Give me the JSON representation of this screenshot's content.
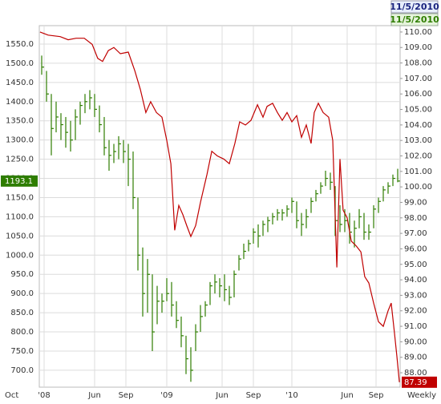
{
  "chart_data": {
    "type": "ohlc_line",
    "as_of": "11/5/2010",
    "x_start_label": "Oct",
    "period": "Weekly",
    "xlim": [
      -2,
      148
    ],
    "xticks": [
      {
        "value": 0,
        "label": "'08"
      },
      {
        "value": 21,
        "label": "Jun"
      },
      {
        "value": 34,
        "label": "Sep"
      },
      {
        "value": 51,
        "label": "'09"
      },
      {
        "value": 74,
        "label": "Jun"
      },
      {
        "value": 87,
        "label": "Sep"
      },
      {
        "value": 103,
        "label": "'10"
      },
      {
        "value": 126,
        "label": "Jun"
      },
      {
        "value": 138,
        "label": "Sep"
      }
    ],
    "ylim": [
      656,
      1598
    ],
    "yticks": [
      {
        "value": 700,
        "label": "700.0"
      },
      {
        "value": 750,
        "label": "750.0"
      },
      {
        "value": 800,
        "label": "800.0"
      },
      {
        "value": 850,
        "label": "850.0"
      },
      {
        "value": 900,
        "label": "900.0"
      },
      {
        "value": 950,
        "label": "950.0"
      },
      {
        "value": 1000,
        "label": "1000.0"
      },
      {
        "value": 1050,
        "label": "1050.0"
      },
      {
        "value": 1100,
        "label": "1100.0"
      },
      {
        "value": 1150,
        "label": "1150.0"
      },
      {
        "value": 1200,
        "label": "1200.0"
      },
      {
        "value": 1250,
        "label": "1250.0"
      },
      {
        "value": 1300,
        "label": "1300.0"
      },
      {
        "value": 1350,
        "label": "1350.0"
      },
      {
        "value": 1400,
        "label": "1400.0"
      },
      {
        "value": 1450,
        "label": "1450.0"
      },
      {
        "value": 1500,
        "label": "1500.0"
      },
      {
        "value": 1550,
        "label": "1550.0"
      }
    ],
    "y2lim": [
      87.07,
      110.41
    ],
    "y2ticks": [
      {
        "value": 88,
        "label": "88.00"
      },
      {
        "value": 89,
        "label": "89.00"
      },
      {
        "value": 90,
        "label": "90.00"
      },
      {
        "value": 91,
        "label": "91.00"
      },
      {
        "value": 92,
        "label": "92.00"
      },
      {
        "value": 93,
        "label": "93.00"
      },
      {
        "value": 94,
        "label": "94.00"
      },
      {
        "value": 95,
        "label": "95.00"
      },
      {
        "value": 96,
        "label": "96.00"
      },
      {
        "value": 97,
        "label": "97.00"
      },
      {
        "value": 98,
        "label": "98.00"
      },
      {
        "value": 99,
        "label": "99.00"
      },
      {
        "value": 100,
        "label": "100.00"
      },
      {
        "value": 101,
        "label": "101.00"
      },
      {
        "value": 102,
        "label": "102.00"
      },
      {
        "value": 103,
        "label": "103.00"
      },
      {
        "value": 104,
        "label": "104.00"
      },
      {
        "value": 105,
        "label": "105.00"
      },
      {
        "value": 106,
        "label": "106.00"
      },
      {
        "value": 107,
        "label": "107.00"
      },
      {
        "value": 108,
        "label": "108.00"
      },
      {
        "value": 109,
        "label": "109.00"
      },
      {
        "value": 110,
        "label": "110.00"
      }
    ],
    "grid": true,
    "series": [
      {
        "name": "11/5/2010",
        "color": "#2e7d00",
        "x": [
          -1,
          1,
          3,
          5,
          7,
          9,
          11,
          13,
          15,
          17,
          19,
          21,
          23,
          25,
          27,
          29,
          31,
          33,
          35,
          37,
          39,
          41,
          43,
          45,
          47,
          49,
          51,
          53,
          55,
          57,
          59,
          61,
          63,
          65,
          67,
          69,
          71,
          73,
          75,
          77,
          79,
          81,
          83,
          85,
          87,
          89,
          91,
          93,
          95,
          97,
          99,
          101,
          103,
          105,
          107,
          109,
          111,
          113,
          115,
          117,
          119,
          121,
          123,
          125,
          127,
          129,
          131,
          133,
          135,
          137,
          139,
          141,
          143,
          145,
          147
        ],
        "high": [
          1520,
          1480,
          1420,
          1400,
          1370,
          1360,
          1350,
          1380,
          1400,
          1420,
          1430,
          1420,
          1390,
          1360,
          1300,
          1290,
          1310,
          1300,
          1290,
          1270,
          1150,
          1020,
          990,
          950,
          920,
          900,
          940,
          930,
          880,
          840,
          790,
          760,
          820,
          870,
          880,
          930,
          950,
          940,
          950,
          920,
          960,
          1000,
          1030,
          1040,
          1070,
          1080,
          1090,
          1100,
          1110,
          1120,
          1120,
          1130,
          1150,
          1140,
          1110,
          1120,
          1150,
          1170,
          1190,
          1220,
          1215,
          1180,
          1130,
          1120,
          1110,
          1090,
          1120,
          1110,
          1080,
          1130,
          1150,
          1180,
          1190,
          1210,
          1225
        ],
        "low": [
          1470,
          1400,
          1260,
          1320,
          1300,
          1280,
          1270,
          1300,
          1340,
          1370,
          1380,
          1360,
          1320,
          1260,
          1220,
          1240,
          1250,
          1240,
          1180,
          1120,
          960,
          840,
          850,
          750,
          820,
          850,
          880,
          840,
          810,
          760,
          690,
          670,
          750,
          800,
          840,
          870,
          900,
          890,
          880,
          870,
          890,
          960,
          990,
          1010,
          1030,
          1020,
          1050,
          1060,
          1080,
          1090,
          1090,
          1100,
          1110,
          1070,
          1050,
          1070,
          1110,
          1140,
          1160,
          1180,
          1170,
          1050,
          1060,
          1060,
          1030,
          1020,
          1070,
          1040,
          1040,
          1070,
          1110,
          1140,
          1160,
          1180,
          1190
        ],
        "close": [
          1490,
          1420,
          1330,
          1360,
          1340,
          1320,
          1300,
          1360,
          1390,
          1400,
          1410,
          1380,
          1340,
          1280,
          1260,
          1270,
          1290,
          1270,
          1250,
          1150,
          1000,
          900,
          950,
          800,
          880,
          880,
          900,
          870,
          830,
          790,
          730,
          700,
          800,
          840,
          870,
          920,
          930,
          920,
          910,
          890,
          950,
          990,
          1010,
          1030,
          1060,
          1050,
          1080,
          1090,
          1100,
          1110,
          1110,
          1120,
          1140,
          1090,
          1080,
          1100,
          1140,
          1160,
          1180,
          1200,
          1190,
          1090,
          1080,
          1090,
          1060,
          1070,
          1100,
          1060,
          1060,
          1120,
          1140,
          1170,
          1180,
          1200,
          1193.1
        ]
      },
      {
        "color": "#c00000",
        "axis": "y2",
        "x": [
          -1.7,
          1.7,
          6.7,
          10,
          13.3,
          16.7,
          20,
          22.3,
          24.3,
          26.7,
          29,
          31.7,
          35,
          37.7,
          40,
          42.3,
          44.3,
          46.7,
          49,
          51,
          52.7,
          54.3,
          56,
          57.7,
          59.3,
          61,
          63,
          65,
          67.7,
          69.7,
          72,
          74.7,
          77,
          79.3,
          81.3,
          83.7,
          86,
          88.7,
          91,
          92.7,
          95,
          97,
          99,
          101,
          103,
          105,
          107,
          109,
          111,
          112.3,
          114,
          116,
          118.3,
          120,
          121.7,
          123,
          124.3,
          126,
          127.7,
          129.7,
          131.7,
          133.3,
          135,
          137,
          139,
          141,
          143,
          144.3,
          145.7,
          146.7,
          147.7
        ],
        "values": [
          110.0,
          109.8,
          109.7,
          109.5,
          109.6,
          109.6,
          109.2,
          108.3,
          108.1,
          108.8,
          109.0,
          108.6,
          108.7,
          107.5,
          106.3,
          104.8,
          105.5,
          104.8,
          104.5,
          103.0,
          101.5,
          97.2,
          98.8,
          98.2,
          97.5,
          96.8,
          97.5,
          99.0,
          100.8,
          102.3,
          102.0,
          101.8,
          101.5,
          102.8,
          104.2,
          104.0,
          104.3,
          105.3,
          104.5,
          105.2,
          105.4,
          104.8,
          104.3,
          104.8,
          104.2,
          104.6,
          103.2,
          104.0,
          102.8,
          104.8,
          105.4,
          104.8,
          104.5,
          103.0,
          94.8,
          101.8,
          98.5,
          98.0,
          96.5,
          96.2,
          95.8,
          94.2,
          93.8,
          92.5,
          91.3,
          91.0,
          92.0,
          92.5,
          90.5,
          89.0,
          87.39
        ]
      }
    ]
  }
}
